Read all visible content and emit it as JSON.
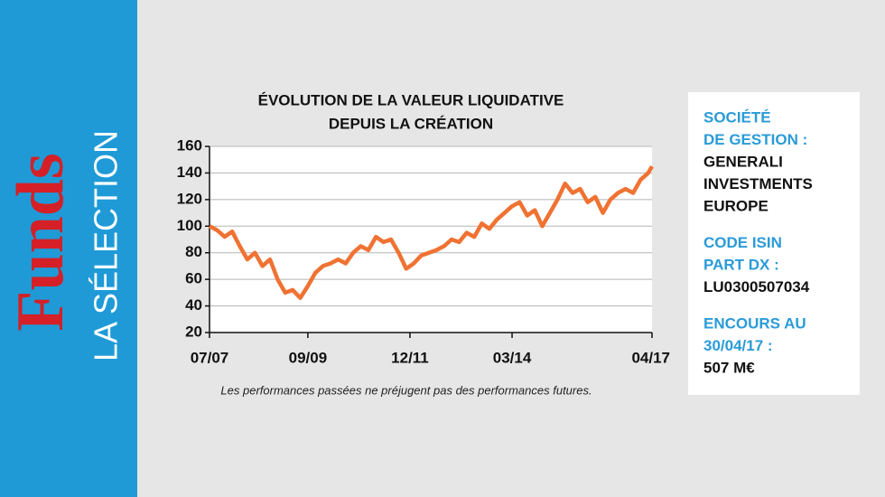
{
  "sidebar": {
    "brand": "Funds",
    "section": "LA SÉLECTION"
  },
  "chart_data": {
    "type": "line",
    "title": [
      "ÉVOLUTION DE LA VALEUR LIQUIDATIVE",
      "DEPUIS LA CRÉATION"
    ],
    "note": "Les performances passées ne préjugent pas des performances futures.",
    "x": [
      0,
      2,
      4,
      6,
      8,
      10,
      12,
      14,
      16,
      18,
      20,
      22,
      24,
      26,
      28,
      30,
      32,
      34,
      36,
      38,
      40,
      42,
      44,
      46,
      48,
      50,
      52,
      54,
      56,
      58,
      60,
      62,
      64,
      66,
      68,
      70,
      72,
      74,
      76,
      78,
      80,
      82,
      84,
      86,
      88,
      90,
      92,
      94,
      96,
      98,
      100,
      102,
      104,
      106,
      108,
      110,
      112,
      114,
      116,
      117
    ],
    "series": [
      {
        "color": "#f07232",
        "values": [
          100,
          97,
          92,
          96,
          85,
          75,
          80,
          70,
          75,
          60,
          50,
          52,
          46,
          55,
          65,
          70,
          72,
          75,
          72,
          80,
          85,
          82,
          92,
          88,
          90,
          80,
          68,
          72,
          78,
          80,
          82,
          85,
          90,
          88,
          95,
          92,
          102,
          98,
          105,
          110,
          115,
          118,
          108,
          112,
          100,
          110,
          120,
          132,
          125,
          128,
          118,
          122,
          110,
          120,
          125,
          128,
          125,
          135,
          140,
          145
        ]
      }
    ],
    "xlim": [
      0,
      117
    ],
    "xticks": [
      {
        "value": 0,
        "label": "07/07"
      },
      {
        "value": 26,
        "label": "09/09"
      },
      {
        "value": 53,
        "label": "12/11"
      },
      {
        "value": 80,
        "label": "03/14"
      },
      {
        "value": 117,
        "label": "04/17"
      }
    ],
    "ylim": [
      20,
      160
    ],
    "yticks": [
      20,
      40,
      60,
      80,
      100,
      120,
      140,
      160
    ],
    "grid": true
  },
  "info": [
    {
      "label": [
        "SOCIÉTÉ",
        "DE GESTION :"
      ],
      "value": [
        "GENERALI",
        "INVESTMENTS",
        "EUROPE"
      ]
    },
    {
      "label": [
        "CODE ISIN",
        "PART DX :"
      ],
      "value": [
        "LU0300507034"
      ]
    },
    {
      "label": [
        "ENCOURS AU",
        "30/04/17 :"
      ],
      "value": [
        "507 M€"
      ]
    }
  ]
}
